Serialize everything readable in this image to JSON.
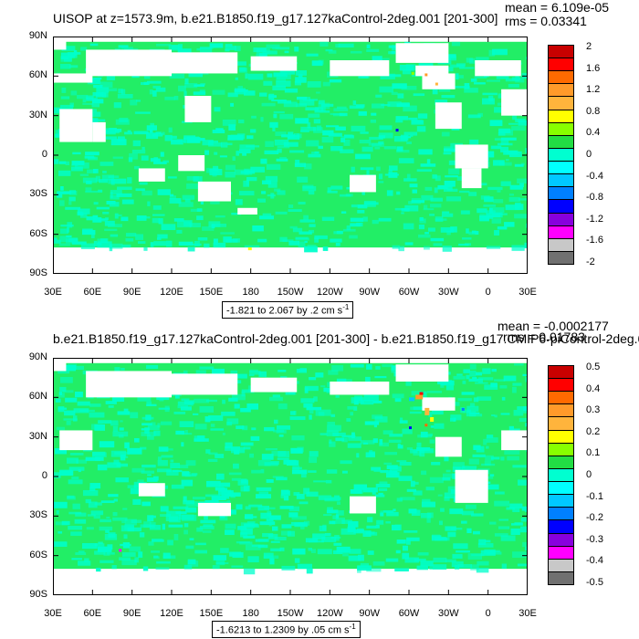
{
  "panels": [
    {
      "title": "UISOP at z=1573.9m, b.e21.B1850.f19_g17.127kaControl-2deg.001 [201-300]",
      "mean_label": "mean = 6.109e-05",
      "rms_label": "rms = 0.03341",
      "range_text": "-1.821 to 2.067 by .2 cm s",
      "range_unit_exp": "-1",
      "colorbar_labels": [
        "2",
        "1.6",
        "1.2",
        "0.8",
        "0.4",
        "0",
        "-0.4",
        "-0.8",
        "-1.2",
        "-1.6",
        "-2"
      ]
    },
    {
      "title": "b.e21.B1850.f19_g17.127kaControl-2deg.001 [201-300] - b.e21.B1850.f19_g17.CMIP6-piControl-2deg.0",
      "mean_label": "mean = -0.0002177",
      "rms_label": "rms = 0.01783",
      "range_text": "-1.6213 to 1.2309 by .05 cm s",
      "range_unit_exp": "-1",
      "colorbar_labels": [
        "0.5",
        "0.4",
        "0.3",
        "0.2",
        "0.1",
        "0",
        "-0.1",
        "-0.2",
        "-0.3",
        "-0.4",
        "-0.5"
      ]
    }
  ],
  "lat_labels": [
    "90N",
    "60N",
    "30N",
    "0",
    "30S",
    "60S",
    "90S"
  ],
  "lon_labels": [
    "30E",
    "60E",
    "90E",
    "120E",
    "150E",
    "180",
    "150W",
    "120W",
    "90W",
    "60W",
    "30W",
    "0",
    "30E"
  ],
  "colors": {
    "palette": [
      "#c80000",
      "#ff0000",
      "#ff6a00",
      "#ff9a2a",
      "#ffb43c",
      "#ffff00",
      "#88ff00",
      "#22dd44",
      "#00ffd0",
      "#00ffff",
      "#00c8ff",
      "#0080ff",
      "#0000ff",
      "#8800dd",
      "#ff00ff",
      "#c8c8c8",
      "#707070"
    ],
    "land": "#ffffff",
    "ocean_main": "#22ee66",
    "ocean_alt": "#00ffcc"
  }
}
